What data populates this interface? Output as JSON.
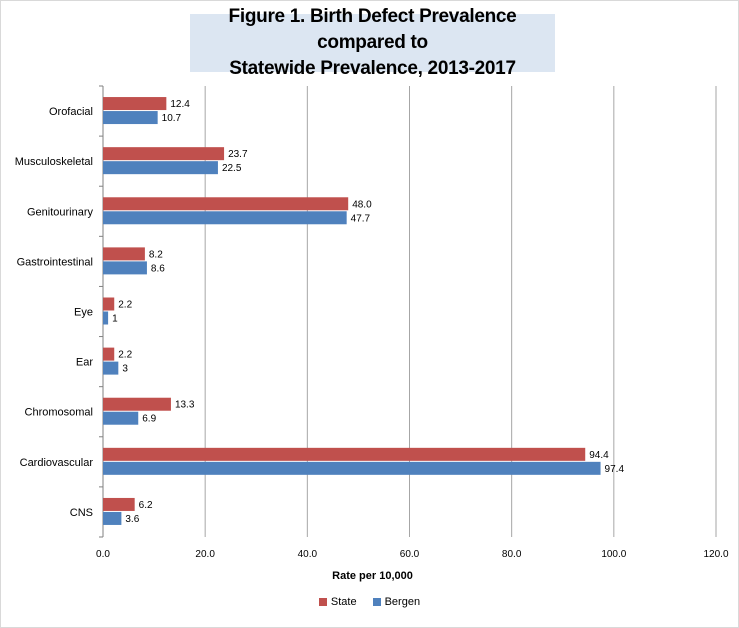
{
  "chart_data": {
    "type": "bar",
    "orientation": "horizontal",
    "title": "Figure 1. Birth Defect Prevalence compared to\nStatewide Prevalence, 2013-2017",
    "xlabel": "Rate per 10,000",
    "ylabel": "",
    "xlim": [
      0,
      120
    ],
    "x_ticks": [
      "0.0",
      "20.0",
      "40.0",
      "60.0",
      "80.0",
      "100.0",
      "120.0"
    ],
    "grid": true,
    "legend_position": "bottom",
    "categories": [
      "Orofacial",
      "Musculoskeletal",
      "Genitourinary",
      "Gastrointestinal",
      "Eye",
      "Ear",
      "Chromosomal",
      "Cardiovascular",
      "CNS"
    ],
    "series": [
      {
        "name": "State",
        "color": "#c0504d",
        "values": [
          12.4,
          23.7,
          48.0,
          8.2,
          2.2,
          2.2,
          13.3,
          94.4,
          6.2
        ],
        "labels": [
          "12.4",
          "23.7",
          "48.0",
          "8.2",
          "2.2",
          "2.2",
          "13.3",
          "94.4",
          "6.2"
        ]
      },
      {
        "name": "Bergen",
        "color": "#4f81bd",
        "values": [
          10.7,
          22.5,
          47.7,
          8.6,
          1,
          3,
          6.9,
          97.4,
          3.6
        ],
        "labels": [
          "10.7",
          "22.5",
          "47.7",
          "8.6",
          "1",
          "3",
          "6.9",
          "97.4",
          "3.6"
        ]
      }
    ]
  }
}
